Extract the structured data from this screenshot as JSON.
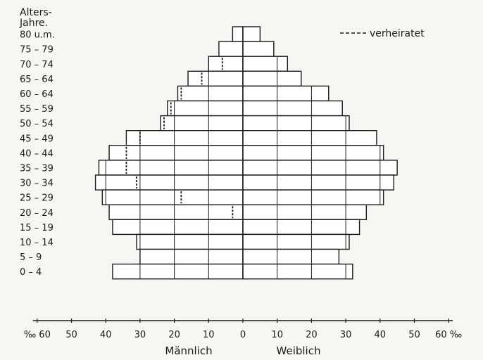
{
  "chart_data": {
    "type": "bar",
    "subtype": "population-pyramid",
    "y_title": "Alters-\nJahre.",
    "age_groups": [
      "80 u.m.",
      "75 – 79",
      "70 – 74",
      "65 – 64",
      "60 – 64",
      "55 – 59",
      "50 – 54",
      "45 – 49",
      "40 – 44",
      "35 – 39",
      "30 – 34",
      "25 – 29",
      "20 – 24",
      "15 – 19",
      "10 – 14",
      "5 – 9",
      "0 – 4"
    ],
    "series": [
      {
        "name": "Männlich",
        "values": [
          3,
          7,
          10,
          16,
          19,
          22,
          24,
          34,
          39,
          42,
          43,
          41,
          39,
          38,
          31,
          30,
          38
        ]
      },
      {
        "name": "Weiblich",
        "values": [
          5,
          9,
          13,
          17,
          25,
          29,
          31,
          39,
          41,
          45,
          44,
          41,
          36,
          34,
          31,
          28,
          32
        ]
      }
    ],
    "married": {
      "name": "verheiratet",
      "male": [
        null,
        null,
        6,
        12,
        18,
        21,
        23,
        30,
        34,
        34,
        31,
        18,
        3,
        null,
        null,
        null,
        null
      ],
      "female": [
        null,
        null,
        null,
        null,
        null,
        null,
        null,
        null,
        null,
        null,
        null,
        null,
        null,
        null,
        null,
        null,
        null
      ]
    },
    "x_ticks": [
      "‰ 60",
      "50",
      "40",
      "30",
      "20",
      "10",
      "0",
      "10",
      "20",
      "30",
      "40",
      "50",
      "60 ‰"
    ],
    "x_range": [
      -60,
      60
    ],
    "unit": "‰",
    "xlabel_left": "Männlich",
    "xlabel_right": "Weiblich",
    "legend_position": "top-right",
    "grid": "vertical at every 10 ‰ inside bars",
    "colors": {
      "ink": "#1a1a1a",
      "fill": "#ffffff",
      "paper": "#f7f6f2"
    }
  }
}
